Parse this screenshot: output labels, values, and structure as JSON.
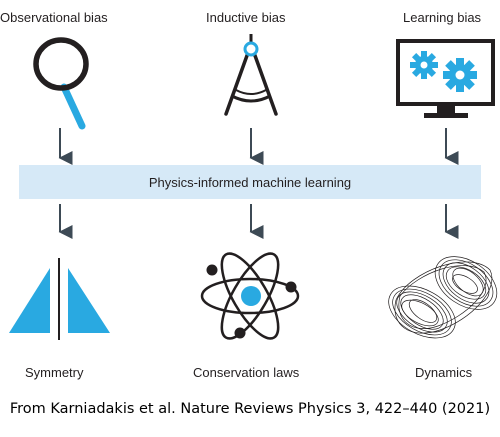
{
  "top_labels": {
    "observational": "Observational bias",
    "inductive": "Inductive bias",
    "learning": "Learning bias"
  },
  "banner": "Physics-informed machine learning",
  "bottom_labels": {
    "symmetry": "Symmetry",
    "conservation": "Conservation laws",
    "dynamics": "Dynamics"
  },
  "credit": "From Karniadakis et al. Nature Reviews Physics 3, 422–440 (2021)",
  "colors": {
    "accent": "#29a9e1",
    "banner": "#d6e9f7",
    "ink": "#231f20",
    "arrow": "#3d4a55"
  },
  "icons": [
    "magnifier-icon",
    "compass-icon",
    "monitor-gears-icon",
    "symmetry-icon",
    "atom-icon",
    "attractor-icon"
  ]
}
